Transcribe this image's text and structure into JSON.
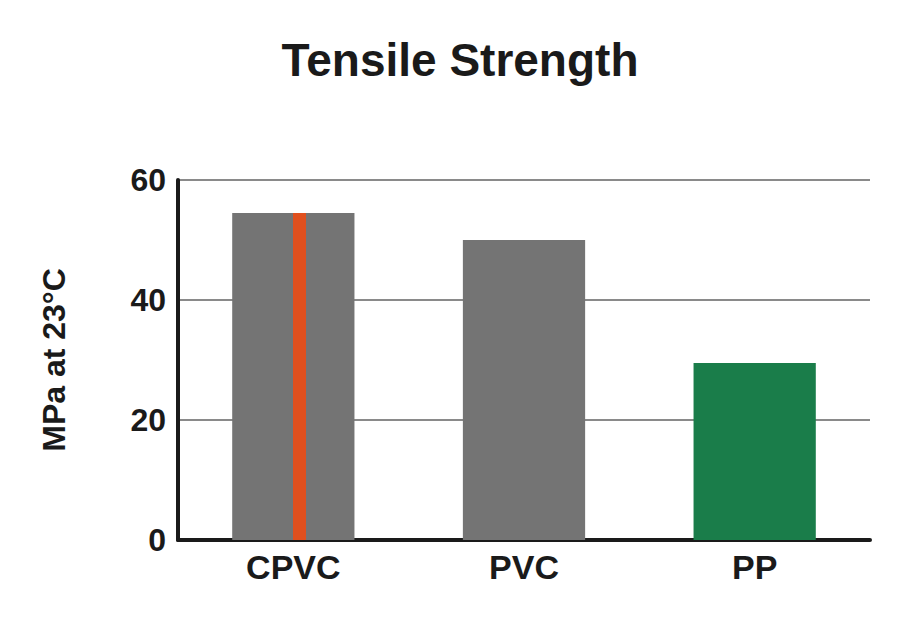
{
  "chart_data": {
    "type": "bar",
    "title": "Tensile Strength",
    "ylabel": "MPa at 23°C",
    "categories": [
      "CPVC",
      "PVC",
      "PP"
    ],
    "values": [
      54.5,
      50,
      29.5
    ],
    "colors": [
      "#747474",
      "#747474",
      "#1a7d4a"
    ],
    "ylim": [
      0,
      60
    ],
    "yticks": [
      0,
      20,
      40,
      60
    ],
    "grid": true
  }
}
